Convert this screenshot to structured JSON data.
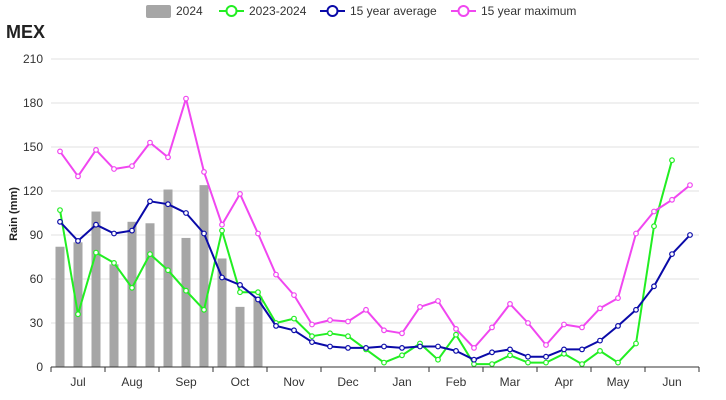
{
  "chart_data": {
    "type": "bar+line",
    "title": "MEX",
    "xlabel": "",
    "ylabel": "Rain (mm)",
    "ylim": [
      0,
      210
    ],
    "yticks": [
      0,
      30,
      60,
      90,
      120,
      150,
      180,
      210
    ],
    "months": [
      "Jul",
      "Aug",
      "Sep",
      "Oct",
      "Nov",
      "Dec",
      "Jan",
      "Feb",
      "Mar",
      "Apr",
      "May",
      "Jun"
    ],
    "dekads_per_month": 3,
    "grid": "horizontal",
    "legend_position": "top-center",
    "legend": [
      {
        "label": "2024",
        "kind": "bar",
        "color": "#a6a6a6"
      },
      {
        "label": "2023-2024",
        "kind": "line",
        "color": "#22ee22"
      },
      {
        "label": "15 year average",
        "kind": "line",
        "color": "#0a0aa8"
      },
      {
        "label": "15 year maximum",
        "kind": "line",
        "color": "#f047f0"
      }
    ],
    "bars": {
      "name": "2024",
      "values": [
        82,
        85,
        106,
        70,
        99,
        98,
        121,
        88,
        124,
        74,
        41,
        48
      ]
    },
    "series": [
      {
        "name": "2023-2024",
        "values": [
          107,
          36,
          78,
          71,
          54,
          77,
          66,
          52,
          39,
          93,
          51,
          51,
          30,
          33,
          21,
          23,
          21,
          12,
          3,
          8,
          16,
          5,
          22,
          2,
          2,
          8,
          3,
          3,
          9,
          2,
          11,
          3,
          16,
          96,
          141
        ]
      },
      {
        "name": "15 year average",
        "values": [
          99,
          86,
          97,
          91,
          93,
          113,
          111,
          105,
          91,
          61,
          56,
          46,
          28,
          25,
          17,
          14,
          13,
          13,
          14,
          13,
          14,
          14,
          11,
          5,
          10,
          12,
          7,
          7,
          12,
          12,
          18,
          28,
          39,
          55,
          77,
          90
        ]
      },
      {
        "name": "15 year maximum",
        "values": [
          147,
          130,
          148,
          135,
          137,
          153,
          143,
          183,
          133,
          97,
          118,
          91,
          63,
          49,
          29,
          32,
          31,
          39,
          25,
          23,
          41,
          45,
          26,
          13,
          27,
          43,
          30,
          15,
          29,
          27,
          40,
          47,
          91,
          106,
          114,
          124
        ]
      }
    ]
  }
}
